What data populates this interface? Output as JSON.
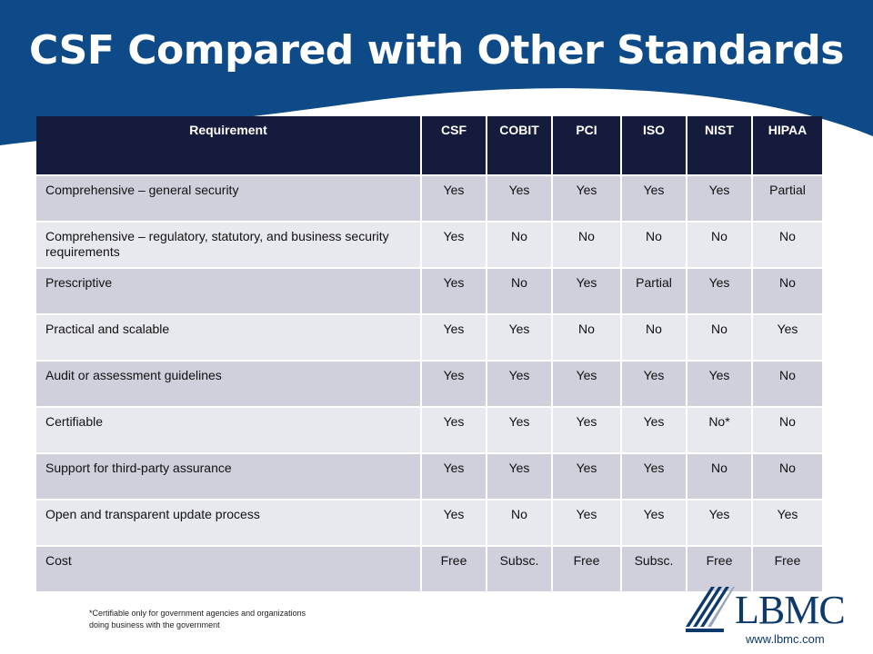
{
  "title": "CSF Compared with Other Standards",
  "colors": {
    "banner": "#0d4a87",
    "header_bg": "#141b3c",
    "row_odd": "#cfd0dc",
    "row_even": "#e8e9ef",
    "brand": "#0d3a6b"
  },
  "table": {
    "headers": [
      "Requirement",
      "CSF",
      "COBIT",
      "PCI",
      "ISO",
      "NIST",
      "HIPAA"
    ],
    "rows": [
      {
        "label": "Comprehensive – general security",
        "values": [
          "Yes",
          "Yes",
          "Yes",
          "Yes",
          "Yes",
          "Partial"
        ]
      },
      {
        "label": "Comprehensive – regulatory, statutory, and business security requirements",
        "values": [
          "Yes",
          "No",
          "No",
          "No",
          "No",
          "No"
        ]
      },
      {
        "label": "Prescriptive",
        "values": [
          "Yes",
          "No",
          "Yes",
          "Partial",
          "Yes",
          "No"
        ]
      },
      {
        "label": "Practical and scalable",
        "values": [
          "Yes",
          "Yes",
          "No",
          "No",
          "No",
          "Yes"
        ]
      },
      {
        "label": "Audit or assessment guidelines",
        "values": [
          "Yes",
          "Yes",
          "Yes",
          "Yes",
          "Yes",
          "No"
        ]
      },
      {
        "label": "Certifiable",
        "values": [
          "Yes",
          "Yes",
          "Yes",
          "Yes",
          "No*",
          "No"
        ]
      },
      {
        "label": "Support for third-party assurance",
        "values": [
          "Yes",
          "Yes",
          "Yes",
          "Yes",
          "No",
          "No"
        ]
      },
      {
        "label": "Open and transparent update process",
        "values": [
          "Yes",
          "No",
          "Yes",
          "Yes",
          "Yes",
          "Yes"
        ]
      },
      {
        "label": "Cost",
        "values": [
          "Free",
          "Subsc.",
          "Free",
          "Subsc.",
          "Free",
          "Free"
        ]
      }
    ]
  },
  "footnote": {
    "line1": "*Certifiable only for government agencies and organizations",
    "line2": "doing business with the government"
  },
  "logo": {
    "text": "LBMC",
    "icon": "lbmc-stripes-logo-icon"
  },
  "website": "www.lbmc.com"
}
